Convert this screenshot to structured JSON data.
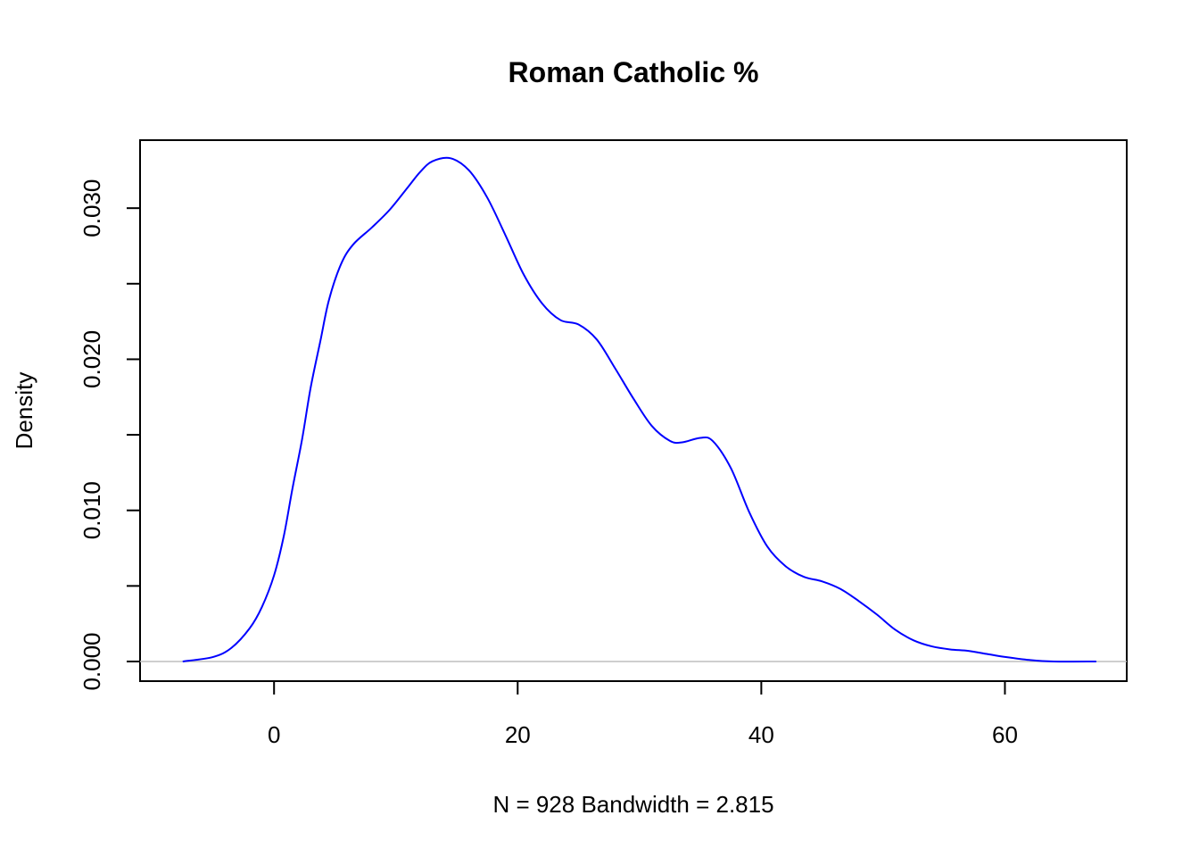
{
  "chart_data": {
    "type": "line",
    "title": "Roman Catholic %",
    "xlabel": "N = 928   Bandwidth = 2.815",
    "ylabel": "Density",
    "xlim": [
      -11,
      70
    ],
    "ylim": [
      -0.0013,
      0.0345
    ],
    "x_ticks": [
      0,
      20,
      40,
      60
    ],
    "x_tick_labels": [
      "0",
      "20",
      "40",
      "60"
    ],
    "y_ticks": [
      0,
      0.005,
      0.01,
      0.015,
      0.02,
      0.025,
      0.03
    ],
    "y_tick_labels": [
      "0.000",
      "",
      "0.010",
      "",
      "0.020",
      "",
      "0.030"
    ],
    "grid": false,
    "series": [
      {
        "color": "#0000ff",
        "x": [
          -7.5,
          -5.0,
          -3.5,
          -2.0,
          -1.0,
          0.0,
          0.8,
          1.5,
          2.3,
          3.0,
          3.8,
          4.5,
          5.5,
          6.5,
          8.0,
          9.5,
          11.0,
          12.0,
          13.0,
          14.5,
          16.0,
          17.5,
          19.0,
          20.5,
          22.0,
          23.5,
          25.0,
          26.5,
          28.0,
          29.5,
          31.0,
          32.5,
          33.5,
          35.0,
          36.0,
          37.5,
          39.0,
          40.5,
          42.0,
          43.5,
          45.0,
          46.5,
          48.0,
          49.5,
          51.0,
          52.5,
          54.0,
          55.5,
          57.0,
          58.5,
          60.0,
          62.0,
          64.0,
          67.5
        ],
        "y": [
          0.0,
          0.0003,
          0.0009,
          0.0022,
          0.0036,
          0.0057,
          0.0083,
          0.0114,
          0.0147,
          0.0181,
          0.0212,
          0.0239,
          0.0263,
          0.0276,
          0.0287,
          0.0299,
          0.0314,
          0.0324,
          0.0331,
          0.0333,
          0.0325,
          0.0307,
          0.0282,
          0.0256,
          0.0237,
          0.0226,
          0.0223,
          0.0213,
          0.0194,
          0.0174,
          0.0156,
          0.0146,
          0.0145,
          0.0148,
          0.0146,
          0.0128,
          0.0099,
          0.0076,
          0.0063,
          0.0056,
          0.0053,
          0.0048,
          0.004,
          0.0031,
          0.0021,
          0.0014,
          0.001,
          0.0008,
          0.0007,
          0.0005,
          0.0003,
          0.0001,
          0.0,
          0.0
        ]
      }
    ],
    "baseline": {
      "y": 0,
      "color": "#bebebe"
    }
  }
}
